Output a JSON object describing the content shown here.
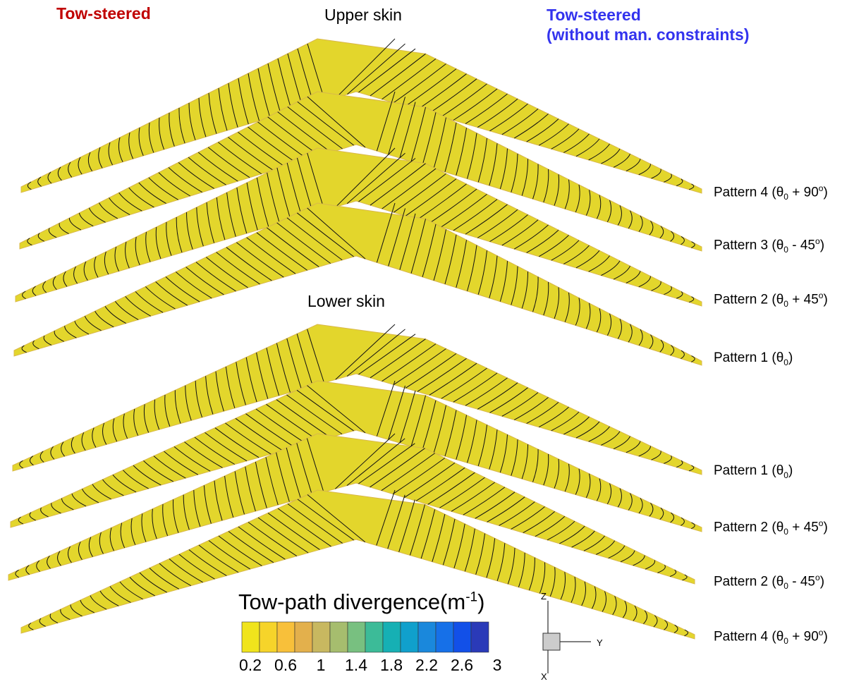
{
  "header": {
    "left": "Tow-steered",
    "center": "Upper skin",
    "right_line1": "Tow-steered",
    "right_line2": "(without man. constraints)"
  },
  "section_lower": "Lower skin",
  "patterns": [
    {
      "prefix": "Pattern 4 (θ",
      "sub": "0",
      "mid": " + 90",
      "sup": "o",
      "suffix": ")"
    },
    {
      "prefix": "Pattern 3 (θ",
      "sub": "0",
      "mid": " - 45",
      "sup": "o",
      "suffix": ")"
    },
    {
      "prefix": "Pattern 2 (θ",
      "sub": "0",
      "mid": " + 45",
      "sup": "o",
      "suffix": ")"
    },
    {
      "prefix": "Pattern 1 (θ",
      "sub": "0",
      "suffix": ")"
    },
    {
      "prefix": "Pattern 1 (θ",
      "sub": "0",
      "suffix": ")"
    },
    {
      "prefix": "Pattern 2 (θ",
      "sub": "0",
      "mid": " + 45",
      "sup": "o",
      "suffix": ")"
    },
    {
      "prefix": "Pattern 2 (θ",
      "sub": "0",
      "mid": " - 45",
      "sup": "o",
      "suffix": ")"
    },
    {
      "prefix": "Pattern 4 (θ",
      "sub": "0",
      "mid": " + 90",
      "sup": "o",
      "suffix": ")"
    }
  ],
  "colorbar": {
    "title": "Tow-path divergence(m",
    "title_sup": "-1",
    "title_end": ")",
    "ticks": [
      "0.2",
      "0.6",
      "1",
      "1.4",
      "1.8",
      "2.2",
      "2.6",
      "3"
    ]
  },
  "axes": {
    "z": "Z",
    "y": "Y",
    "x": "X"
  }
}
